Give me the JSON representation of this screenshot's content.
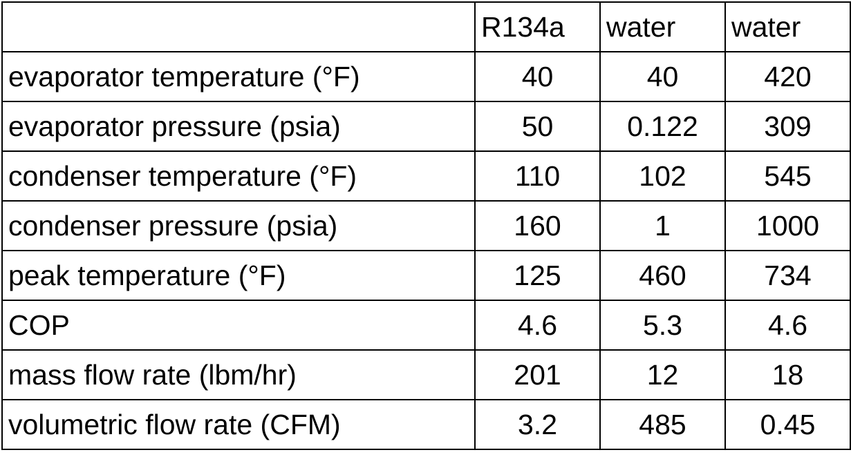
{
  "table": {
    "headers": [
      "",
      "R134a",
      "water",
      "water"
    ],
    "rows": [
      {
        "label": "evaporator temperature (°F)",
        "values": [
          "40",
          "40",
          "420"
        ]
      },
      {
        "label": "evaporator pressure (psia)",
        "values": [
          "50",
          "0.122",
          "309"
        ]
      },
      {
        "label": "condenser temperature (°F)",
        "values": [
          "110",
          "102",
          "545"
        ]
      },
      {
        "label": "condenser pressure (psia)",
        "values": [
          "160",
          "1",
          "1000"
        ]
      },
      {
        "label": "peak temperature (°F)",
        "values": [
          "125",
          "460",
          "734"
        ]
      },
      {
        "label": "COP",
        "values": [
          "4.6",
          "5.3",
          "4.6"
        ]
      },
      {
        "label": "mass flow rate (lbm/hr)",
        "values": [
          "201",
          "12",
          "18"
        ]
      },
      {
        "label": "volumetric flow rate (CFM)",
        "values": [
          "3.2",
          "485",
          "0.45"
        ]
      }
    ]
  }
}
